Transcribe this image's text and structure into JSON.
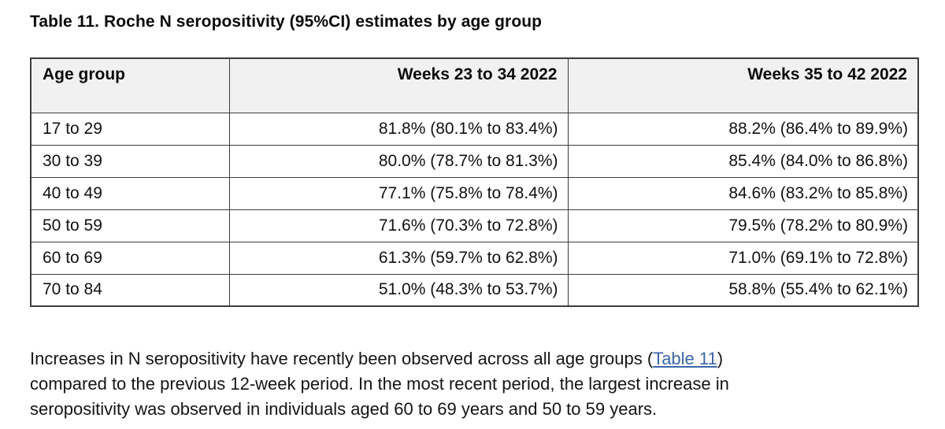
{
  "title": "Table 11. Roche N seropositivity (95%CI) estimates by age group",
  "table": {
    "columns": [
      "Age group",
      "Weeks 23 to 34 2022",
      "Weeks 35 to 42 2022"
    ],
    "rows": [
      [
        "17 to 29",
        "81.8% (80.1% to 83.4%)",
        "88.2% (86.4% to 89.9%)"
      ],
      [
        "30 to 39",
        "80.0% (78.7% to 81.3%)",
        "85.4% (84.0% to 86.8%)"
      ],
      [
        "40 to 49",
        "77.1% (75.8% to 78.4%)",
        "84.6% (83.2% to 85.8%)"
      ],
      [
        "50 to 59",
        "71.6% (70.3% to 72.8%)",
        "79.5% (78.2% to 80.9%)"
      ],
      [
        "60 to 69",
        "61.3% (59.7% to 62.8%)",
        "71.0% (69.1% to 72.8%)"
      ],
      [
        "70 to 84",
        "51.0% (48.3% to 53.7%)",
        "58.8% (55.4% to 62.1%)"
      ]
    ]
  },
  "paragraph": {
    "line1_before_link": "Increases in N seropositivity have recently been observed across all age groups (",
    "line1_link": "Table 11",
    "line1_after_link": ")",
    "line2": "compared to the previous 12-week period. In the most recent period, the largest increase in",
    "line3": "seropositivity was observed in individuals aged 60 to 69 years and 50 to 59 years."
  },
  "colors": {
    "page_background": "#FFFFFF",
    "text": "#111111",
    "table_border": "#3C3C3C",
    "header_background": "#F1F1F1",
    "link_blue": "#3A66A5"
  }
}
